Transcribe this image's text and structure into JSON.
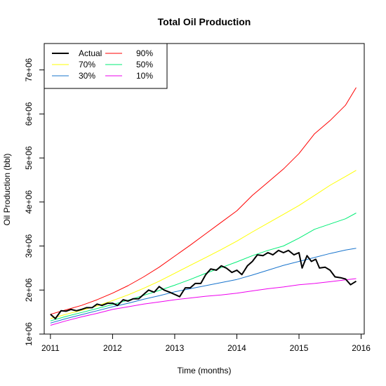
{
  "chart_data": {
    "type": "line",
    "title": "Total Oil Production",
    "xlabel": "Time (months)",
    "ylabel": "Oil Production (bbl)",
    "xlim": [
      2010.9,
      2016.05
    ],
    "ylim": [
      1000000,
      7600000
    ],
    "x_ticks": [
      2011,
      2012,
      2013,
      2014,
      2015,
      2016
    ],
    "x_tick_labels": [
      "2011",
      "2012",
      "2013",
      "2014",
      "2015",
      "2016"
    ],
    "y_ticks": [
      1000000,
      2000000,
      3000000,
      4000000,
      5000000,
      6000000,
      7000000
    ],
    "y_tick_labels": [
      "1e+06",
      "2e+06",
      "3e+06",
      "4e+06",
      "5e+06",
      "6e+06",
      "7e+06"
    ],
    "grid": false,
    "legend_position": "top-left",
    "series": [
      {
        "name": "Actual",
        "color": "#000000",
        "width": 2,
        "points": [
          [
            2011.0,
            1450000
          ],
          [
            2011.08,
            1350000
          ],
          [
            2011.17,
            1530000
          ],
          [
            2011.25,
            1520000
          ],
          [
            2011.33,
            1560000
          ],
          [
            2011.42,
            1530000
          ],
          [
            2011.5,
            1560000
          ],
          [
            2011.58,
            1600000
          ],
          [
            2011.67,
            1600000
          ],
          [
            2011.75,
            1680000
          ],
          [
            2011.83,
            1650000
          ],
          [
            2011.92,
            1700000
          ],
          [
            2012.0,
            1700000
          ],
          [
            2012.08,
            1650000
          ],
          [
            2012.17,
            1780000
          ],
          [
            2012.25,
            1750000
          ],
          [
            2012.33,
            1800000
          ],
          [
            2012.42,
            1800000
          ],
          [
            2012.5,
            1900000
          ],
          [
            2012.58,
            2000000
          ],
          [
            2012.67,
            1950000
          ],
          [
            2012.75,
            2080000
          ],
          [
            2012.83,
            2000000
          ],
          [
            2012.92,
            1950000
          ],
          [
            2013.0,
            1900000
          ],
          [
            2013.08,
            1850000
          ],
          [
            2013.17,
            2050000
          ],
          [
            2013.25,
            2050000
          ],
          [
            2013.33,
            2150000
          ],
          [
            2013.42,
            2150000
          ],
          [
            2013.5,
            2350000
          ],
          [
            2013.58,
            2480000
          ],
          [
            2013.67,
            2450000
          ],
          [
            2013.75,
            2550000
          ],
          [
            2013.83,
            2500000
          ],
          [
            2013.92,
            2400000
          ],
          [
            2014.0,
            2450000
          ],
          [
            2014.08,
            2350000
          ],
          [
            2014.17,
            2550000
          ],
          [
            2014.25,
            2650000
          ],
          [
            2014.33,
            2800000
          ],
          [
            2014.42,
            2780000
          ],
          [
            2014.5,
            2850000
          ],
          [
            2014.58,
            2800000
          ],
          [
            2014.67,
            2900000
          ],
          [
            2014.75,
            2850000
          ],
          [
            2014.83,
            2900000
          ],
          [
            2014.92,
            2800000
          ],
          [
            2015.0,
            2850000
          ],
          [
            2015.05,
            2500000
          ],
          [
            2015.13,
            2780000
          ],
          [
            2015.2,
            2650000
          ],
          [
            2015.27,
            2700000
          ],
          [
            2015.33,
            2500000
          ],
          [
            2015.42,
            2520000
          ],
          [
            2015.5,
            2450000
          ],
          [
            2015.58,
            2300000
          ],
          [
            2015.67,
            2280000
          ],
          [
            2015.75,
            2250000
          ],
          [
            2015.83,
            2120000
          ],
          [
            2015.92,
            2200000
          ]
        ]
      },
      {
        "name": "90%",
        "color": "#ff0000",
        "width": 1,
        "points": [
          [
            2011.0,
            1450000
          ],
          [
            2011.25,
            1550000
          ],
          [
            2011.5,
            1650000
          ],
          [
            2011.75,
            1780000
          ],
          [
            2012.0,
            1930000
          ],
          [
            2012.25,
            2100000
          ],
          [
            2012.5,
            2300000
          ],
          [
            2012.75,
            2520000
          ],
          [
            2013.0,
            2770000
          ],
          [
            2013.25,
            3020000
          ],
          [
            2013.5,
            3280000
          ],
          [
            2013.75,
            3540000
          ],
          [
            2014.0,
            3800000
          ],
          [
            2014.25,
            4150000
          ],
          [
            2014.5,
            4450000
          ],
          [
            2014.75,
            4750000
          ],
          [
            2015.0,
            5100000
          ],
          [
            2015.25,
            5550000
          ],
          [
            2015.5,
            5850000
          ],
          [
            2015.75,
            6200000
          ],
          [
            2015.92,
            6600000
          ]
        ]
      },
      {
        "name": "70%",
        "color": "#ffff00",
        "width": 1,
        "points": [
          [
            2011.0,
            1350000
          ],
          [
            2011.25,
            1450000
          ],
          [
            2011.5,
            1540000
          ],
          [
            2011.75,
            1640000
          ],
          [
            2012.0,
            1760000
          ],
          [
            2012.25,
            1890000
          ],
          [
            2012.5,
            2040000
          ],
          [
            2012.75,
            2200000
          ],
          [
            2013.0,
            2380000
          ],
          [
            2013.25,
            2560000
          ],
          [
            2013.5,
            2740000
          ],
          [
            2013.75,
            2920000
          ],
          [
            2014.0,
            3110000
          ],
          [
            2014.25,
            3320000
          ],
          [
            2014.5,
            3520000
          ],
          [
            2014.75,
            3720000
          ],
          [
            2015.0,
            3920000
          ],
          [
            2015.25,
            4150000
          ],
          [
            2015.5,
            4380000
          ],
          [
            2015.75,
            4580000
          ],
          [
            2015.92,
            4720000
          ]
        ]
      },
      {
        "name": "50%",
        "color": "#00ee76",
        "width": 1,
        "points": [
          [
            2011.0,
            1300000
          ],
          [
            2011.25,
            1400000
          ],
          [
            2011.5,
            1490000
          ],
          [
            2011.75,
            1580000
          ],
          [
            2012.0,
            1670000
          ],
          [
            2012.25,
            1770000
          ],
          [
            2012.5,
            1880000
          ],
          [
            2012.75,
            1990000
          ],
          [
            2013.0,
            2110000
          ],
          [
            2013.25,
            2240000
          ],
          [
            2013.5,
            2380000
          ],
          [
            2013.75,
            2510000
          ],
          [
            2014.0,
            2640000
          ],
          [
            2014.25,
            2780000
          ],
          [
            2014.5,
            2900000
          ],
          [
            2014.75,
            3000000
          ],
          [
            2015.0,
            3180000
          ],
          [
            2015.25,
            3380000
          ],
          [
            2015.5,
            3500000
          ],
          [
            2015.75,
            3620000
          ],
          [
            2015.92,
            3750000
          ]
        ]
      },
      {
        "name": "30%",
        "color": "#1874cd",
        "width": 1,
        "points": [
          [
            2011.0,
            1250000
          ],
          [
            2011.25,
            1350000
          ],
          [
            2011.5,
            1440000
          ],
          [
            2011.75,
            1530000
          ],
          [
            2012.0,
            1620000
          ],
          [
            2012.25,
            1700000
          ],
          [
            2012.5,
            1790000
          ],
          [
            2012.75,
            1870000
          ],
          [
            2013.0,
            1960000
          ],
          [
            2013.25,
            2030000
          ],
          [
            2013.5,
            2100000
          ],
          [
            2013.75,
            2170000
          ],
          [
            2014.0,
            2240000
          ],
          [
            2014.25,
            2340000
          ],
          [
            2014.5,
            2450000
          ],
          [
            2014.75,
            2560000
          ],
          [
            2015.0,
            2650000
          ],
          [
            2015.25,
            2740000
          ],
          [
            2015.5,
            2830000
          ],
          [
            2015.75,
            2910000
          ],
          [
            2015.92,
            2950000
          ]
        ]
      },
      {
        "name": "10%",
        "color": "#ee00ee",
        "width": 1,
        "points": [
          [
            2011.0,
            1200000
          ],
          [
            2011.25,
            1300000
          ],
          [
            2011.5,
            1390000
          ],
          [
            2011.75,
            1470000
          ],
          [
            2012.0,
            1560000
          ],
          [
            2012.25,
            1620000
          ],
          [
            2012.5,
            1680000
          ],
          [
            2012.75,
            1730000
          ],
          [
            2013.0,
            1780000
          ],
          [
            2013.25,
            1820000
          ],
          [
            2013.5,
            1860000
          ],
          [
            2013.75,
            1890000
          ],
          [
            2014.0,
            1930000
          ],
          [
            2014.25,
            1980000
          ],
          [
            2014.5,
            2030000
          ],
          [
            2014.75,
            2070000
          ],
          [
            2015.0,
            2120000
          ],
          [
            2015.25,
            2150000
          ],
          [
            2015.5,
            2190000
          ],
          [
            2015.75,
            2230000
          ],
          [
            2015.92,
            2260000
          ]
        ]
      }
    ]
  }
}
